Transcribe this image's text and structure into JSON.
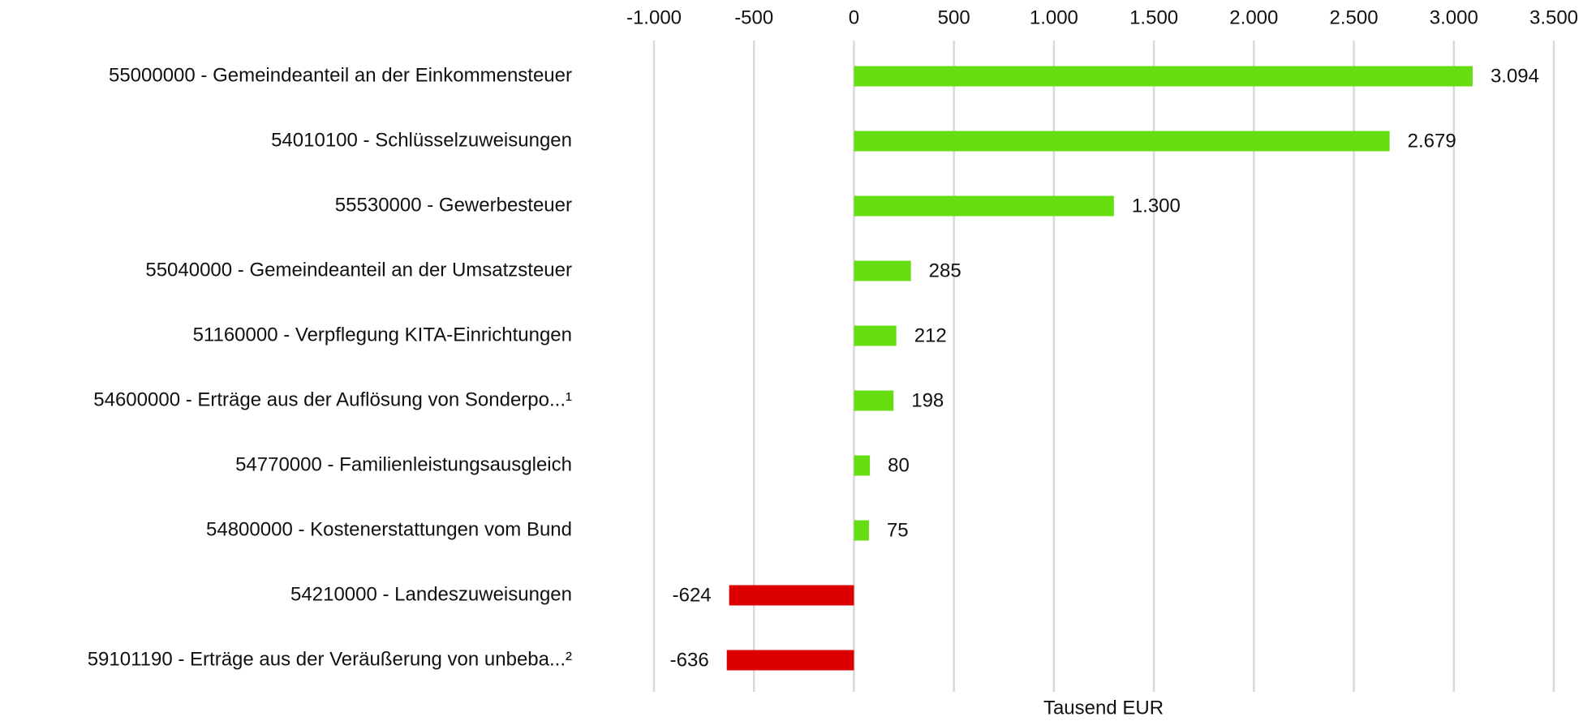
{
  "chart_data": {
    "type": "barh",
    "xlabel": "Tausend EUR",
    "categories": [
      "55000000 - Gemeindeanteil an der Einkommensteuer",
      "54010100 - Schlüsselzuweisungen",
      "55530000 - Gewerbesteuer",
      "55040000 - Gemeindeanteil an der Umsatzsteuer",
      "51160000 - Verpflegung KITA-Einrichtungen",
      "54600000 - Erträge aus der Auflösung von Sonderpo...¹",
      "54770000 - Familienleistungsausgleich",
      "54800000 - Kostenerstattungen vom Bund",
      "54210000 - Landeszuweisungen",
      "59101190 - Erträge aus der Veräußerung von unbeba...²"
    ],
    "values": [
      3094,
      2679,
      1300,
      285,
      212,
      198,
      80,
      75,
      -624,
      -636
    ],
    "value_labels": [
      "3.094",
      "2.679",
      "1.300",
      "285",
      "212",
      "198",
      "80",
      "75",
      "-624",
      "-636"
    ],
    "colors": [
      "#66dd11",
      "#66dd11",
      "#66dd11",
      "#66dd11",
      "#66dd11",
      "#66dd11",
      "#66dd11",
      "#66dd11",
      "#dd0000",
      "#dd0000"
    ],
    "xlim": [
      -1000,
      3500
    ],
    "xticks": [
      {
        "value": -1000,
        "label": "-1.000"
      },
      -500,
      0,
      500,
      {
        "value": 1000,
        "label": "1.000"
      },
      {
        "value": 1500,
        "label": "1.500"
      },
      {
        "value": 2000,
        "label": "2.000"
      },
      {
        "value": 2500,
        "label": "2.500"
      },
      {
        "value": 3000,
        "label": "3.000"
      },
      {
        "value": 3500,
        "label": "3.500"
      }
    ],
    "grid": true
  }
}
